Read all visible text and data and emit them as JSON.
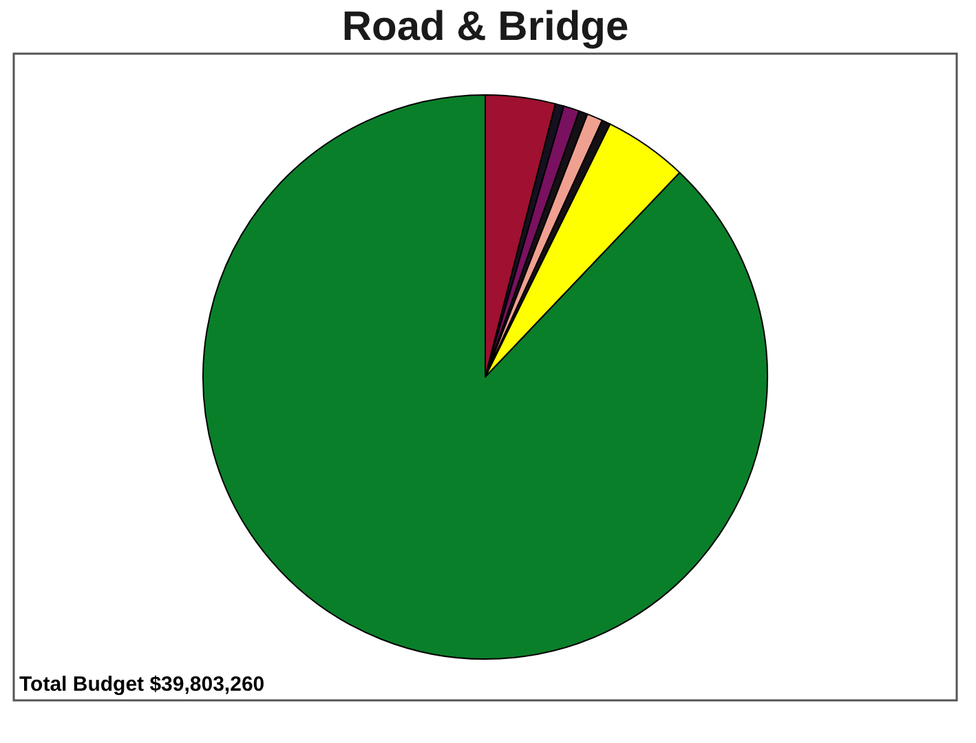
{
  "chart_data": {
    "type": "pie",
    "title": "Road & Bridge",
    "categories": [
      null,
      null,
      null,
      null,
      null,
      null,
      null,
      null
    ],
    "values": [
      4.0,
      0.5,
      0.9,
      0.5,
      0.9,
      0.5,
      4.8,
      87.9
    ],
    "colors": [
      "#a01030",
      "#151020",
      "#7a1060",
      "#151015",
      "#f0a090",
      "#151015",
      "#ffff00",
      "#0a7f2a"
    ],
    "legend": false,
    "annotations": [
      "Total Budget  $39,803,260"
    ]
  }
}
